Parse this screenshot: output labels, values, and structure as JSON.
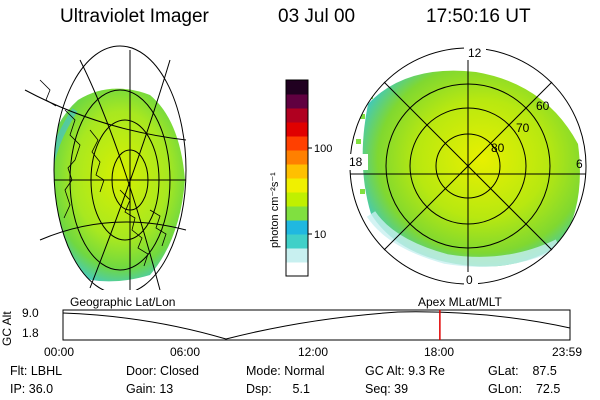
{
  "header": {
    "title": "Ultraviolet Imager",
    "date": "03 Jul 00",
    "time": "17:50:16 UT"
  },
  "colorbar": {
    "unit_label": "photon cm⁻²s⁻¹",
    "ticks": [
      {
        "label": "100",
        "value": 100
      },
      {
        "label": "10",
        "value": 10
      }
    ],
    "colors": [
      "#ffffff",
      "#c8f0f0",
      "#40d0c8",
      "#20b8e0",
      "#80e040",
      "#c0f000",
      "#f0f000",
      "#ffc000",
      "#ff8000",
      "#ff4000",
      "#e00000",
      "#b00020",
      "#600040",
      "#200020"
    ]
  },
  "panels": {
    "left_label": "Geographic Lat/Lon",
    "right_label": "Apex MLat/MLT",
    "right_grid_labels": {
      "mlt_12": "12",
      "mlt_18": "18",
      "mlt_6": "6",
      "mlt_0": "0",
      "lat_60": "60",
      "lat_70": "70",
      "lat_80": "80"
    }
  },
  "timeline": {
    "axis_label": "GC Alt",
    "y_max": "9.0",
    "y_min": "1.8",
    "ticks": [
      "00:00",
      "06:00",
      "12:00",
      "18:00",
      "23:59"
    ],
    "marker_hours": 17.84,
    "marker_color": "#e00000"
  },
  "info": {
    "filter": "Flt: LBHL",
    "ip": "IP: 36.0",
    "door": "Door: Closed",
    "gain": "Gain: 13",
    "mode": "Mode: Normal",
    "dsp": "Dsp:      5.1",
    "gc_alt": "GC Alt: 9.3 Re",
    "seq": "Seq: 39",
    "glat": "GLat:    87.5",
    "glon": "GLon:    72.5"
  }
}
